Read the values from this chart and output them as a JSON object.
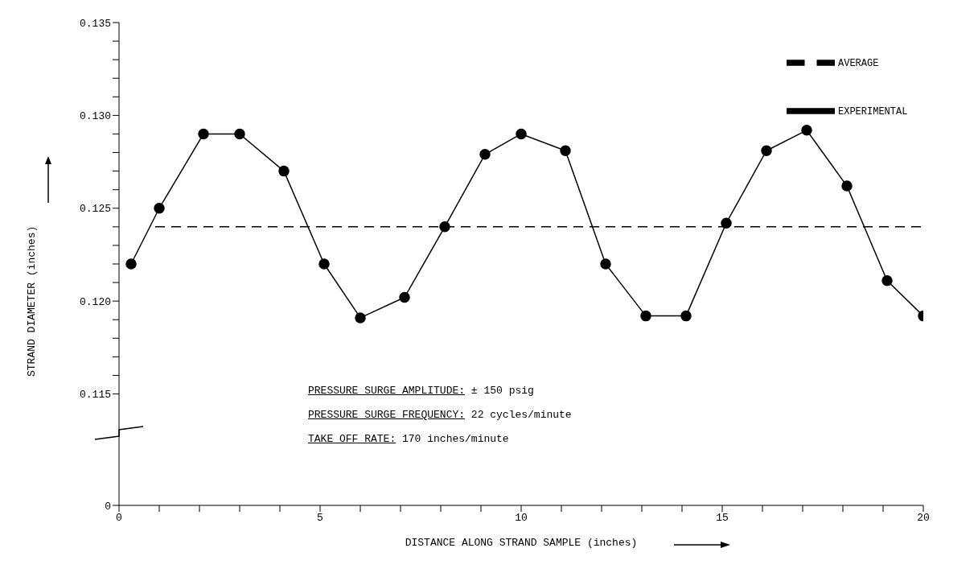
{
  "chart_data": {
    "type": "line",
    "xlabel": "DISTANCE ALONG STRAND SAMPLE (inches)",
    "ylabel": "STRAND DIAMETER (inches)",
    "xlim": [
      0,
      20
    ],
    "xticks": [
      0,
      {
        "value": 1,
        "label": null
      },
      {
        "value": 2,
        "label": null
      },
      {
        "value": 3,
        "label": null
      },
      {
        "value": 4,
        "label": null
      },
      5,
      {
        "value": 6,
        "label": null
      },
      {
        "value": 7,
        "label": null
      },
      {
        "value": 8,
        "label": null
      },
      {
        "value": 9,
        "label": null
      },
      10,
      {
        "value": 11,
        "label": null
      },
      {
        "value": 12,
        "label": null
      },
      {
        "value": 13,
        "label": null
      },
      {
        "value": 14,
        "label": null
      },
      15,
      {
        "value": 16,
        "label": null
      },
      {
        "value": 17,
        "label": null
      },
      {
        "value": 18,
        "label": null
      },
      {
        "value": 19,
        "label": null
      },
      20
    ],
    "ylim": [
      0.109,
      0.135
    ],
    "yticks": [
      {
        "value": 0.109,
        "label": "0"
      },
      {
        "value": 0.115,
        "label": "0.115"
      },
      {
        "value": 0.116,
        "label": null
      },
      {
        "value": 0.117,
        "label": null
      },
      {
        "value": 0.118,
        "label": null
      },
      {
        "value": 0.119,
        "label": null
      },
      {
        "value": 0.12,
        "label": "0.120"
      },
      {
        "value": 0.121,
        "label": null
      },
      {
        "value": 0.122,
        "label": null
      },
      {
        "value": 0.123,
        "label": null
      },
      {
        "value": 0.124,
        "label": null
      },
      {
        "value": 0.125,
        "label": "0.125"
      },
      {
        "value": 0.126,
        "label": null
      },
      {
        "value": 0.127,
        "label": null
      },
      {
        "value": 0.128,
        "label": null
      },
      {
        "value": 0.129,
        "label": null
      },
      {
        "value": 0.13,
        "label": "0.130"
      },
      {
        "value": 0.131,
        "label": null
      },
      {
        "value": 0.132,
        "label": null
      },
      {
        "value": 0.133,
        "label": null
      },
      {
        "value": 0.134,
        "label": null
      },
      {
        "value": 0.135,
        "label": "0.135"
      }
    ],
    "grid": false,
    "legend": "top right",
    "series": [
      {
        "name": "EXPERIMENTAL",
        "color": "#000000",
        "marker": "circle",
        "line_style": "solid",
        "x": [
          0.3,
          1,
          2.1,
          3,
          4.1,
          5.1,
          6,
          7.1,
          8.1,
          9.1,
          10,
          11.1,
          12.1,
          13.1,
          14.1,
          15.1,
          16.1,
          17.1,
          18.1,
          19.1,
          20
        ],
        "values": [
          0.122,
          0.125,
          0.129,
          0.129,
          0.127,
          0.122,
          0.1191,
          0.1202,
          0.124,
          0.1279,
          0.129,
          0.1281,
          0.122,
          0.1192,
          0.1192,
          0.1242,
          0.1281,
          0.1292,
          0.1262,
          0.1211,
          0.1192
        ]
      },
      {
        "name": "AVERAGE",
        "color": "#000000",
        "marker": "none",
        "line_style": "dashed",
        "x": [
          0.9,
          20
        ],
        "values": [
          0.124,
          0.124
        ]
      }
    ],
    "annotations": [
      "PRESSURE SURGE AMPLITUDE: ± 150 psig",
      "PRESSURE SURGE FREQUENCY: 22 cycles/minute",
      "TAKE OFF RATE: 170 inches/minute"
    ]
  }
}
